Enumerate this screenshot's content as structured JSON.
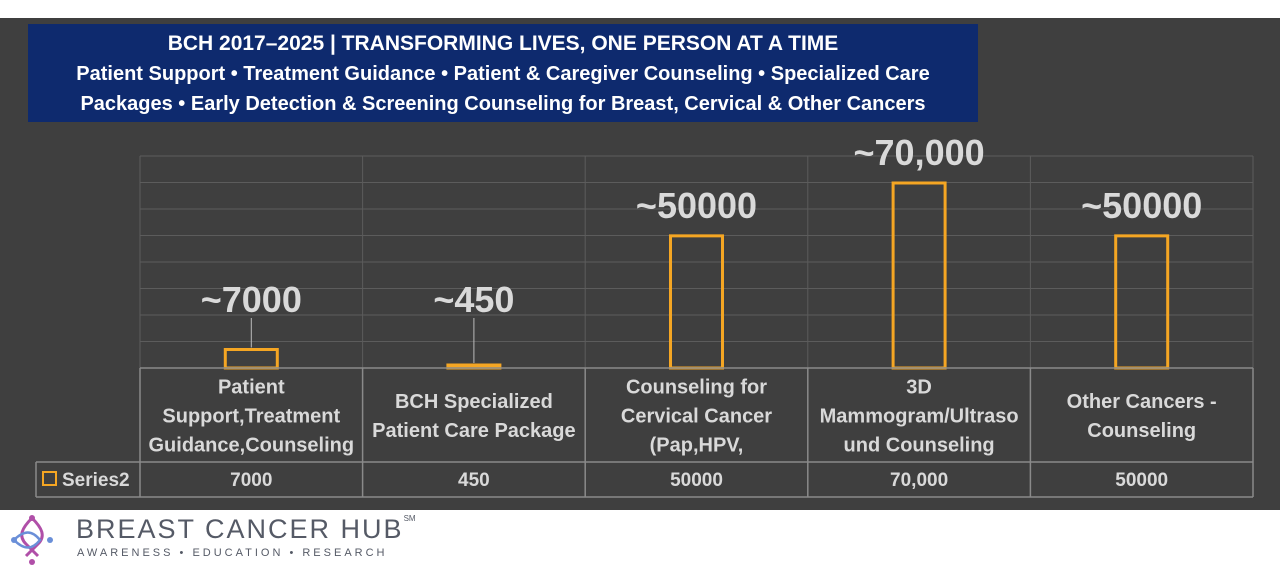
{
  "header": {
    "title": "BCH 2017–2025 | TRANSFORMING LIVES, ONE PERSON AT A TIME",
    "subtitle_line1": "Patient Support • Treatment Guidance • Patient & Caregiver Counseling • Specialized Care",
    "subtitle_line2": "Packages • Early Detection & Screening Counseling for Breast, Cervical & Other Cancers"
  },
  "chart_data": {
    "type": "bar",
    "categories": [
      [
        "Patient",
        "Support,Treatment",
        "Guidance,Counseling"
      ],
      [
        "BCH Specialized",
        "Patient Care Package"
      ],
      [
        "Counseling for",
        "Cervical Cancer",
        "(Pap,HPV,"
      ],
      [
        "3D",
        "Mammogram/Ultraso",
        "und Counseling"
      ],
      [
        "Other Cancers -",
        "Counseling"
      ]
    ],
    "series": [
      {
        "name": "Series2",
        "values": [
          7000,
          450,
          50000,
          70000,
          50000
        ],
        "table_labels": [
          "7000",
          "450",
          "50000",
          "70,000",
          "50000"
        ]
      }
    ],
    "data_labels": [
      "~7000",
      "~450",
      "~50000",
      "~70,000",
      "~50000"
    ],
    "ylim": [
      0,
      70000
    ],
    "grid": true,
    "legend": "data table",
    "colors": {
      "bar_outline": "#f5a623",
      "panel_bg": "#3f3f3f",
      "title_bg": "#0e2a6e",
      "text": "#d9d9d9"
    }
  },
  "footer": {
    "brand": "BREAST CANCER HUB",
    "mark": "SM",
    "tagline": "AWARENESS • EDUCATION • RESEARCH"
  }
}
